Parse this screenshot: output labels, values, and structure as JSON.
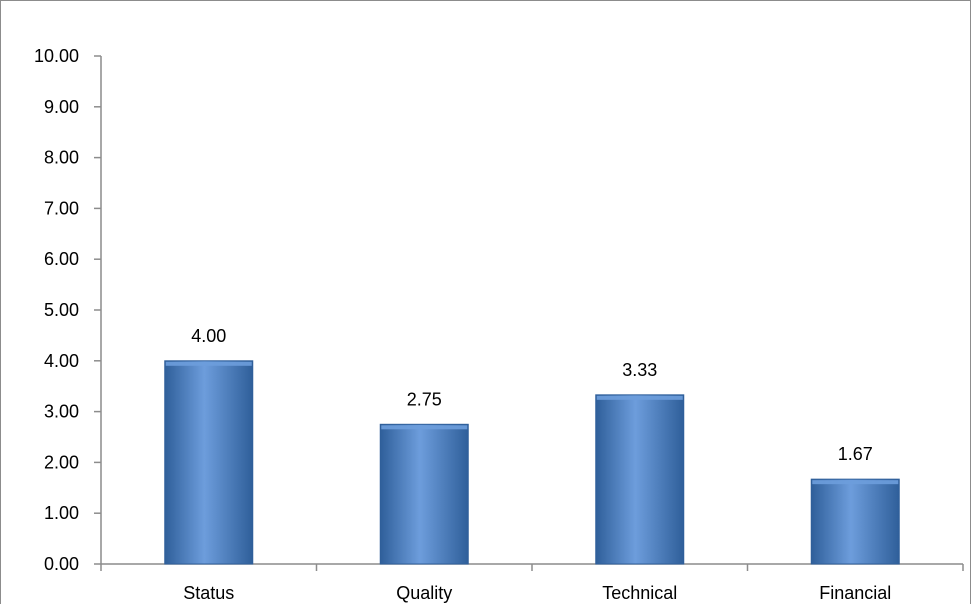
{
  "chart_data": {
    "type": "bar",
    "title": "",
    "xlabel": "",
    "ylabel": "",
    "categories": [
      "Status",
      "Quality",
      "Technical",
      "Financial"
    ],
    "values": [
      4.0,
      2.75,
      3.33,
      1.67
    ],
    "data_labels": [
      "4.00",
      "2.75",
      "3.33",
      "1.67"
    ],
    "ylim": [
      0,
      10
    ],
    "yticks": [
      0,
      1,
      2,
      3,
      4,
      5,
      6,
      7,
      8,
      9,
      10
    ],
    "ytick_labels": [
      "0.00",
      "1.00",
      "2.00",
      "3.00",
      "4.00",
      "5.00",
      "6.00",
      "7.00",
      "8.00",
      "9.00",
      "10.00"
    ],
    "grid": false,
    "legend": "none",
    "bar_color": "#4a7ebb",
    "bar_color_light": "#6d9ddc",
    "bar_color_dark": "#2f5f9a",
    "axis_color": "#8c8c8c"
  }
}
